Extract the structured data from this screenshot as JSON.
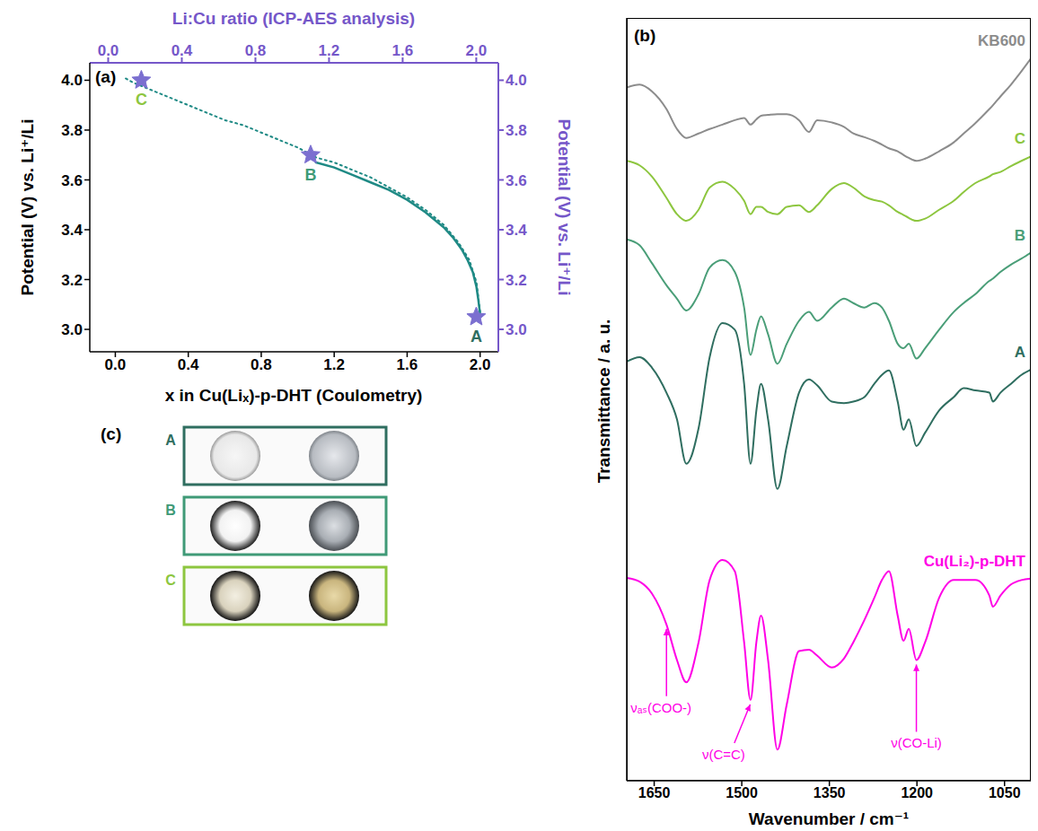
{
  "chart_data": [
    {
      "type": "line",
      "panel_label": "(a)",
      "x_label": "x in Cu(Liₓ)-p-DHT (Coulometry)",
      "x2_label": "Li:Cu ratio (ICP-AES analysis)",
      "y_label": "Potential (V) vs. Li⁺/Li",
      "y2_label": "Potential (V) vs. Li⁺/Li",
      "xlim": [
        -0.14,
        2.1
      ],
      "xticks": [
        {
          "value": 0,
          "label": "0.0"
        },
        0.4,
        0.8,
        1.2,
        1.6,
        {
          "value": 2,
          "label": "2.0"
        }
      ],
      "x2lim": [
        -0.1,
        2.12
      ],
      "x2ticks": [
        {
          "value": 0,
          "label": "0.0"
        },
        0.4,
        0.8,
        1.2,
        1.6,
        {
          "value": 2,
          "label": "2.0"
        }
      ],
      "ylim": [
        2.91,
        4.07
      ],
      "yticks": [
        {
          "value": 3,
          "label": "3.0"
        },
        3.2,
        3.4,
        3.6,
        3.8,
        {
          "value": 4,
          "label": "4.0"
        }
      ],
      "y2lim": [
        2.91,
        4.07
      ],
      "y2ticks": [
        {
          "value": 3,
          "label": "3.0"
        },
        3.2,
        3.4,
        3.6,
        3.8,
        {
          "value": 4,
          "label": "4.0"
        }
      ],
      "series": [
        {
          "type": "line",
          "line_style": "solid",
          "color": "#1f8a85",
          "x": [
            2.0,
            1.99,
            1.98,
            1.96,
            1.93,
            1.9,
            1.85,
            1.8,
            1.7,
            1.6,
            1.5,
            1.4,
            1.3,
            1.2,
            1.1
          ],
          "values": [
            3.06,
            3.12,
            3.17,
            3.23,
            3.28,
            3.32,
            3.37,
            3.41,
            3.47,
            3.52,
            3.56,
            3.59,
            3.62,
            3.65,
            3.67
          ]
        },
        {
          "type": "line",
          "line_style": "dotted",
          "color": "#1f8a85",
          "x": [
            2.0,
            1.98,
            1.94,
            1.88,
            1.8,
            1.7,
            1.6,
            1.5,
            1.4,
            1.3,
            1.2,
            1.1,
            1.0,
            0.9,
            0.8,
            0.7,
            0.6,
            0.5,
            0.4,
            0.3,
            0.2,
            0.1,
            0.05
          ],
          "values": [
            3.07,
            3.19,
            3.28,
            3.35,
            3.42,
            3.48,
            3.53,
            3.57,
            3.61,
            3.64,
            3.67,
            3.69,
            3.73,
            3.76,
            3.79,
            3.82,
            3.84,
            3.87,
            3.9,
            3.93,
            3.96,
            3.99,
            4.01
          ]
        },
        {
          "type": "scatter",
          "marker": "star",
          "color": "#7b6fd0",
          "axis": "y2",
          "x": [
            2.0,
            1.1,
            0.18
          ],
          "values": [
            3.05,
            3.7,
            4.0
          ],
          "labels": [
            "A",
            "B",
            "C"
          ],
          "label_colors": [
            "#2f6e60",
            "#3f9a77",
            "#8dc63f"
          ]
        }
      ]
    },
    {
      "type": "line",
      "panel_label": "(b)",
      "x_label": "Wavenumber / cm⁻¹",
      "y_label": "Transmittance / a. u.",
      "xlim": [
        1697,
        1005
      ],
      "xticks": [
        1650,
        1500,
        1350,
        1200,
        1050
      ],
      "ylim": [
        3,
        106
      ],
      "tick_labels": "x",
      "x": [
        1697,
        1675,
        1654,
        1629,
        1611,
        1595,
        1574,
        1555,
        1533,
        1512,
        1496,
        1485,
        1475,
        1467,
        1455,
        1439,
        1423,
        1402,
        1385,
        1371,
        1346,
        1325,
        1309,
        1290,
        1273,
        1260,
        1248,
        1233,
        1223,
        1214,
        1201,
        1186,
        1162,
        1137,
        1120,
        1100,
        1076,
        1070,
        1057,
        1039,
        1021,
        1005
      ],
      "series": [
        {
          "name": "KB600",
          "color": "#8c8c8c",
          "values": [
            96.6,
            97.0,
            96.1,
            93.7,
            91.0,
            89.8,
            90.4,
            91.0,
            91.6,
            92.2,
            92.5,
            91.6,
            92.3,
            92.8,
            92.9,
            93.0,
            93.0,
            92.2,
            90.6,
            92.2,
            91.9,
            91.3,
            90.4,
            89.9,
            89.4,
            88.9,
            88.4,
            88.0,
            87.5,
            87.1,
            86.7,
            87.0,
            88.0,
            89.2,
            90.4,
            91.8,
            93.7,
            94.2,
            95.4,
            97.0,
            98.8,
            100.5
          ]
        },
        {
          "name": "C",
          "color": "#8dc63f",
          "values": [
            86.7,
            86.1,
            84.6,
            81.7,
            79.5,
            78.6,
            80.1,
            83.1,
            83.9,
            82.9,
            81.3,
            79.5,
            80.5,
            80.5,
            79.8,
            79.5,
            80.5,
            80.7,
            79.8,
            80.7,
            82.9,
            83.7,
            83.1,
            81.9,
            81.4,
            81.2,
            80.7,
            79.8,
            79.4,
            79.0,
            78.6,
            78.9,
            80.1,
            81.3,
            82.5,
            83.7,
            84.6,
            84.9,
            85.2,
            86.0,
            86.7,
            87.3
          ]
        },
        {
          "name": "B",
          "color": "#4a9e78",
          "values": [
            76.1,
            75.3,
            72.9,
            69.9,
            68.1,
            66.5,
            68.7,
            72.3,
            73.3,
            71.7,
            66.9,
            60.5,
            63.9,
            65.7,
            63.3,
            59.3,
            62.0,
            65.1,
            66.3,
            65.1,
            66.9,
            68.1,
            67.5,
            66.9,
            67.5,
            66.9,
            65.1,
            62.0,
            61.4,
            62.0,
            60.0,
            61.4,
            63.9,
            66.3,
            67.5,
            68.7,
            70.5,
            70.8,
            71.7,
            72.7,
            73.5,
            74.3
          ]
        },
        {
          "name": "A",
          "color": "#2f6e60",
          "values": [
            59.6,
            60.2,
            58.8,
            55.4,
            51.8,
            45.8,
            50.6,
            60.2,
            64.8,
            63.9,
            56.6,
            45.8,
            53.0,
            56.6,
            51.8,
            42.4,
            48.2,
            55.4,
            57.2,
            56.4,
            54.2,
            54.0,
            54.2,
            54.8,
            56.6,
            57.8,
            58.4,
            54.2,
            50.4,
            51.8,
            48.2,
            50.0,
            53.0,
            54.8,
            56.0,
            55.7,
            55.4,
            54.2,
            55.4,
            56.6,
            57.8,
            58.5
          ]
        },
        {
          "name": "Cu(Li₂)-p-DHT",
          "color": "#ff00e6",
          "values": [
            30.4,
            29.9,
            28.3,
            24.1,
            19.3,
            16.3,
            21.7,
            30.1,
            32.8,
            31.3,
            21.7,
            13.9,
            21.7,
            25.3,
            19.3,
            7.2,
            13.3,
            20.5,
            20.7,
            19.9,
            18.3,
            19.5,
            21.7,
            24.7,
            27.7,
            30.1,
            31.3,
            25.3,
            21.9,
            23.5,
            19.3,
            21.7,
            27.7,
            30.1,
            30.1,
            30.1,
            28.0,
            26.5,
            28.0,
            29.5,
            30.1,
            30.3
          ]
        }
      ],
      "annotations": [
        {
          "text": "νₐₛ(COO-)",
          "x": 1629,
          "y": 24.1
        },
        {
          "text": "ν(C=C)",
          "x": 1485,
          "y": 13.9
        },
        {
          "text": "ν(CO-Li)",
          "x": 1201,
          "y": 19.3
        }
      ]
    }
  ],
  "photos": {
    "panel_label": "(c)",
    "items": [
      {
        "label": "A",
        "color": "#2f6e60"
      },
      {
        "label": "B",
        "color": "#3f9a77"
      },
      {
        "label": "C",
        "color": "#8dc63f"
      }
    ]
  }
}
